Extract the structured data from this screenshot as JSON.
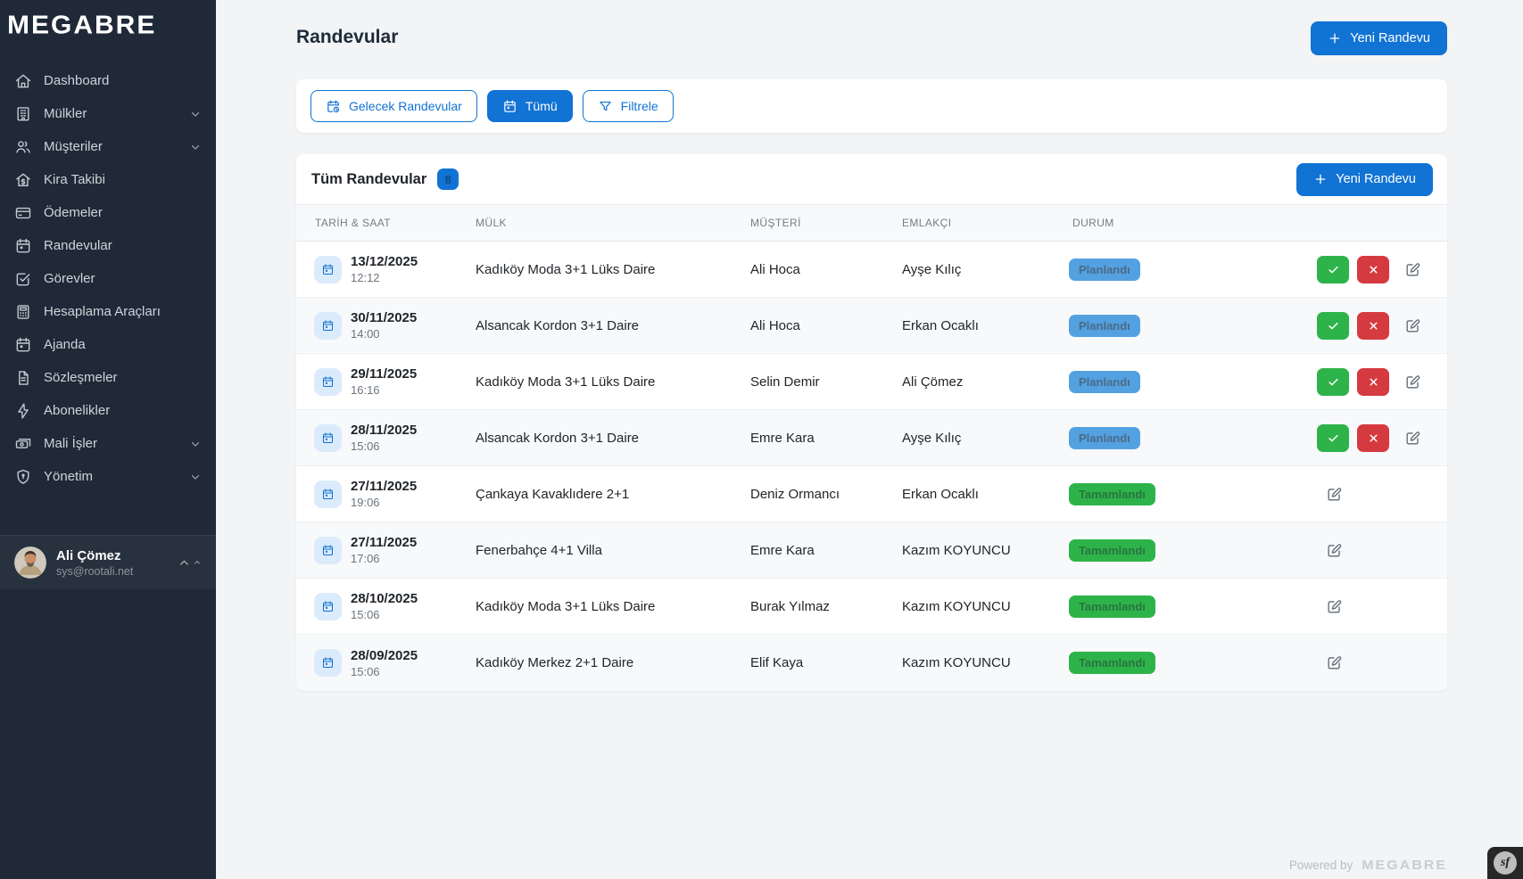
{
  "app": {
    "logo": "MEGABRE",
    "footer_powered_by": "Powered by",
    "footer_logo": "MEGABRE",
    "sf_badge": "sf"
  },
  "colors": {
    "primary": "#1173d4",
    "sidebar_bg": "#1f2937",
    "status_planned_bg": "#54a1e1",
    "status_completed_bg": "#2eb34a",
    "approve_green": "#2eb34a",
    "reject_red": "#d63a41"
  },
  "sidebar": {
    "items": [
      {
        "label": "Dashboard",
        "icon": "home-icon",
        "chevron": false
      },
      {
        "label": "Mülkler",
        "icon": "building-icon",
        "chevron": true
      },
      {
        "label": "Müşteriler",
        "icon": "users-icon",
        "chevron": true
      },
      {
        "label": "Kira Takibi",
        "icon": "house-dollar-icon",
        "chevron": false
      },
      {
        "label": "Ödemeler",
        "icon": "credit-card-icon",
        "chevron": false
      },
      {
        "label": "Randevular",
        "icon": "calendar-icon",
        "chevron": false
      },
      {
        "label": "Görevler",
        "icon": "check-square-icon",
        "chevron": false
      },
      {
        "label": "Hesaplama Araçları",
        "icon": "calculator-icon",
        "chevron": false
      },
      {
        "label": "Ajanda",
        "icon": "calendar-icon",
        "chevron": false
      },
      {
        "label": "Sözleşmeler",
        "icon": "document-icon",
        "chevron": false
      },
      {
        "label": "Abonelikler",
        "icon": "lightning-icon",
        "chevron": false
      },
      {
        "label": "Mali İşler",
        "icon": "cash-icon",
        "chevron": true
      },
      {
        "label": "Yönetim",
        "icon": "shield-icon",
        "chevron": true
      }
    ],
    "user": {
      "name": "Ali Çömez",
      "email": "sys@rootali.net"
    }
  },
  "header": {
    "title": "Randevular",
    "new_button_label": "Yeni Randevu"
  },
  "filters": [
    {
      "label": "Gelecek Randevular",
      "icon": "calendar-clock-icon",
      "active": false
    },
    {
      "label": "Tümü",
      "icon": "calendar-icon",
      "active": true
    },
    {
      "label": "Filtrele",
      "icon": "funnel-icon",
      "active": false
    }
  ],
  "table": {
    "title": "Tüm Randevular",
    "count": "8",
    "new_button_label": "Yeni Randevu",
    "columns": [
      "TARİH & SAAT",
      "MÜLK",
      "MÜŞTERİ",
      "EMLAKÇI",
      "DURUM",
      ""
    ],
    "rows": [
      {
        "date": "13/12/2025",
        "time": "12:12",
        "property": "Kadıköy Moda 3+1 Lüks Daire",
        "customer": "Ali Hoca",
        "agent": "Ayşe Kılıç",
        "status": "Planlandı",
        "status_type": "planned"
      },
      {
        "date": "30/11/2025",
        "time": "14:00",
        "property": "Alsancak Kordon 3+1 Daire",
        "customer": "Ali Hoca",
        "agent": "Erkan Ocaklı",
        "status": "Planlandı",
        "status_type": "planned"
      },
      {
        "date": "29/11/2025",
        "time": "16:16",
        "property": "Kadıköy Moda 3+1 Lüks Daire",
        "customer": "Selin Demir",
        "agent": "Ali Çömez",
        "status": "Planlandı",
        "status_type": "planned"
      },
      {
        "date": "28/11/2025",
        "time": "15:06",
        "property": "Alsancak Kordon 3+1 Daire",
        "customer": "Emre Kara",
        "agent": "Ayşe Kılıç",
        "status": "Planlandı",
        "status_type": "planned"
      },
      {
        "date": "27/11/2025",
        "time": "19:06",
        "property": "Çankaya Kavaklıdere 2+1",
        "customer": "Deniz Ormancı",
        "agent": "Erkan Ocaklı",
        "status": "Tamamlandı",
        "status_type": "completed"
      },
      {
        "date": "27/11/2025",
        "time": "17:06",
        "property": "Fenerbahçe 4+1 Villa",
        "customer": "Emre Kara",
        "agent": "Kazım KOYUNCU",
        "status": "Tamamlandı",
        "status_type": "completed"
      },
      {
        "date": "28/10/2025",
        "time": "15:06",
        "property": "Kadıköy Moda 3+1 Lüks Daire",
        "customer": "Burak Yılmaz",
        "agent": "Kazım KOYUNCU",
        "status": "Tamamlandı",
        "status_type": "completed"
      },
      {
        "date": "28/09/2025",
        "time": "15:06",
        "property": "Kadıköy Merkez 2+1 Daire",
        "customer": "Elif Kaya",
        "agent": "Kazım KOYUNCU",
        "status": "Tamamlandı",
        "status_type": "completed"
      }
    ]
  }
}
